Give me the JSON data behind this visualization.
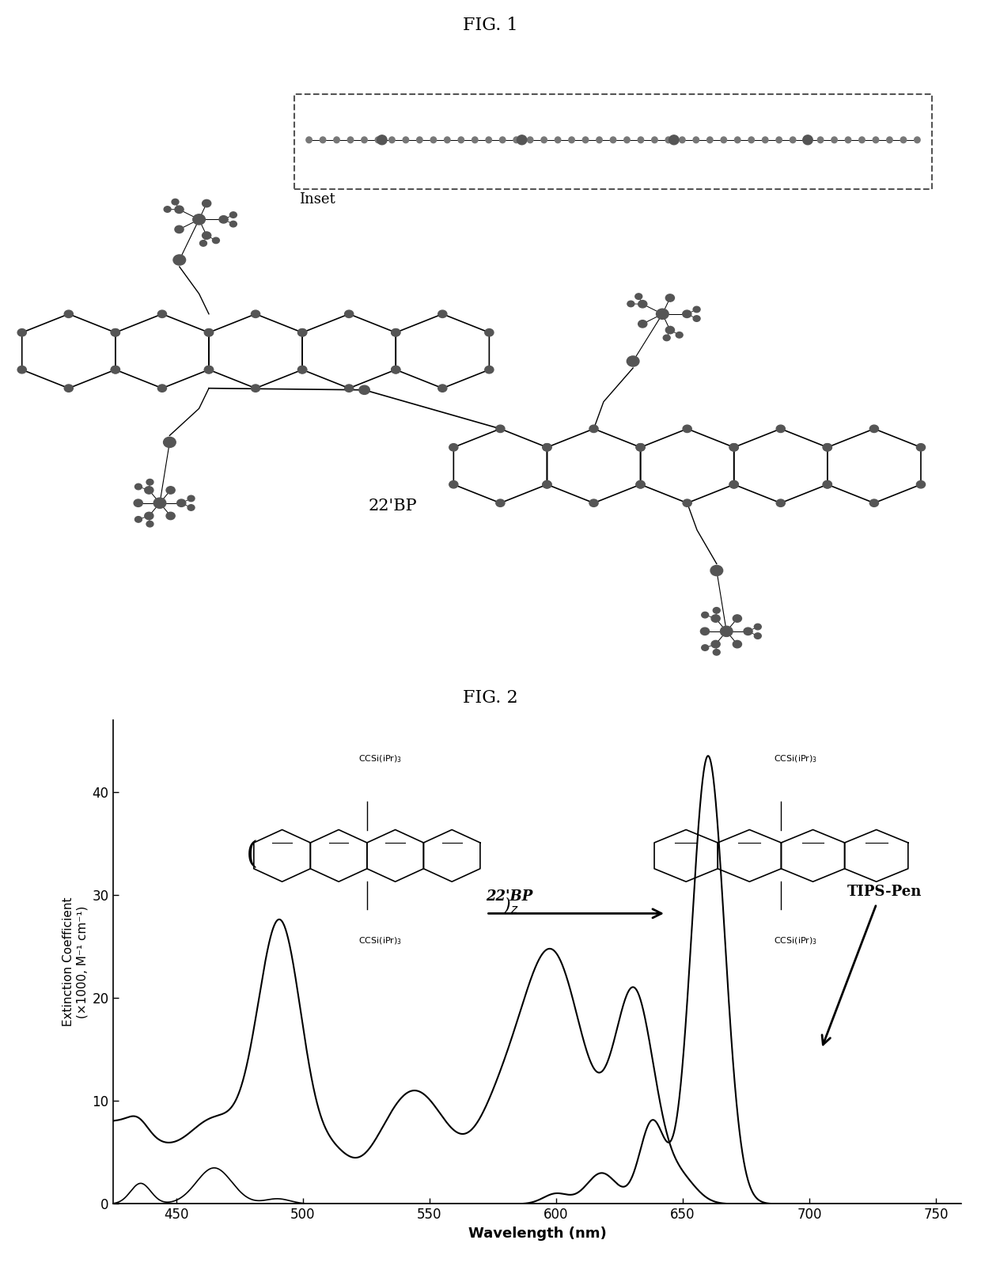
{
  "fig1_title": "FIG. 1",
  "fig2_title": "FIG. 2",
  "fig1_label": "22'BP",
  "fig1_inset_label": "Inset",
  "xlabel": "Wavelength (nm)",
  "ylabel": "Extinction Coefficient\n(×1000, M⁻¹ cm⁻¹)",
  "xlim": [
    425,
    760
  ],
  "ylim": [
    0,
    47
  ],
  "yticks": [
    0,
    10,
    20,
    30,
    40
  ],
  "xticks": [
    450,
    500,
    550,
    600,
    650,
    700,
    750
  ],
  "label_22bp": "22'BP",
  "label_tipspen": "TIPS-Pen",
  "bg_color": "#ffffff",
  "line_color": "#000000"
}
